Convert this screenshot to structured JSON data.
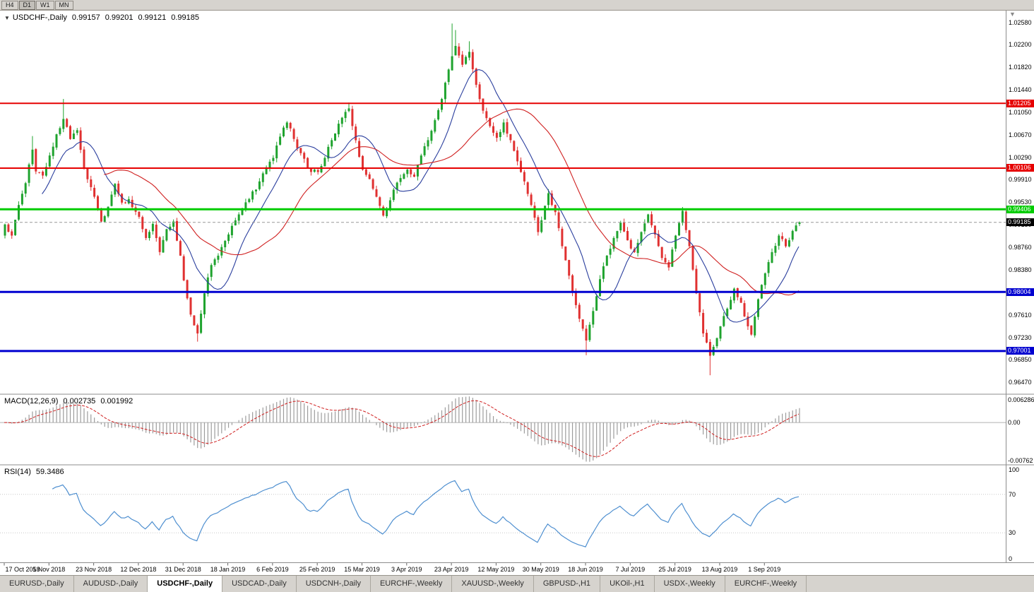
{
  "toolbar": {
    "timeframes": [
      "H4",
      "D1",
      "W1",
      "MN"
    ],
    "active_timeframe": "D1",
    "chart_shift_icon": "▼"
  },
  "chart_header": {
    "expander": "▼",
    "symbol": "USDCHF-,Daily",
    "open": "0.99157",
    "high": "0.99201",
    "low": "0.99121",
    "close": "0.99185"
  },
  "macd_header": {
    "label": "MACD(12,26,9)",
    "main": "0.002735",
    "signal": "0.001992"
  },
  "rsi_header": {
    "label": "RSI(14)",
    "value": "59.3486"
  },
  "current_price": {
    "label": "0.99185",
    "value": 0.99185,
    "color": "#000000"
  },
  "colors": {
    "bull": "#1fa32e",
    "bear": "#e03131",
    "ma_fast": "#2b3f9e",
    "ma_slow": "#d02020",
    "macd_hist": "#9c9c9c",
    "macd_signal": "#d02020",
    "rsi_line": "#4e8fd0",
    "grid": "#b0b0b0",
    "level_red": "#e60000",
    "level_green": "#00cc00",
    "level_blue": "#0000d0"
  },
  "tabs": {
    "active_index": 2,
    "items": [
      "EURUSD-,Daily",
      "AUDUSD-,Daily",
      "USDCHF-,Daily",
      "USDCAD-,Daily",
      "USDCNH-,Daily",
      "EURCHF-,Weekly",
      "XAUUSD-,Weekly",
      "GBPUSD-,H1",
      "UKOil-,H1",
      "USDX-,Weekly",
      "EURCHF-,Weekly"
    ]
  },
  "chart_data": {
    "type": "candlestick",
    "symbol": "USDCHF-",
    "timeframe": "Daily",
    "last_ohlc": {
      "open": 0.99157,
      "high": 0.99201,
      "low": 0.99121,
      "close": 0.99185
    },
    "y_axis": {
      "visible_range": [
        0.9628,
        1.0278
      ],
      "ticks": [
        [
          "1.02580",
          1.0258
        ],
        [
          "1.02200",
          1.022
        ],
        [
          "1.01820",
          1.0182
        ],
        [
          "1.01440",
          1.0144
        ],
        [
          "1.01050",
          1.0105
        ],
        [
          "1.00670",
          1.0067
        ],
        [
          "1.00290",
          1.0029
        ],
        [
          "0.99910",
          0.9991
        ],
        [
          "0.99530",
          0.9953
        ],
        [
          "0.99150",
          0.9915
        ],
        [
          "0.98760",
          0.9876
        ],
        [
          "0.98380",
          0.9838
        ],
        [
          "0.98000",
          0.98
        ],
        [
          "0.97610",
          0.9761
        ],
        [
          "0.97230",
          0.9723
        ],
        [
          "0.96850",
          0.9685
        ],
        [
          "0.96470",
          0.9647
        ]
      ]
    },
    "x_axis": {
      "date_labels": [
        "17 Oct 2018",
        "5 Nov 2018",
        "23 Nov 2018",
        "12 Dec 2018",
        "31 Dec 2018",
        "18 Jan 2019",
        "6 Feb 2019",
        "25 Feb 2019",
        "15 Mar 2019",
        "3 Apr 2019",
        "23 Apr 2019",
        "12 May 2019",
        "30 May 2019",
        "18 Jun 2019",
        "7 Jul 2019",
        "25 Jul 2019",
        "13 Aug 2019",
        "1 Sep 2019"
      ],
      "first_label_bar": 0,
      "bars_per_label": 13
    },
    "horizontal_levels": [
      {
        "label": "1.01205",
        "value": 1.01205,
        "color": "#e60000",
        "width": 2
      },
      {
        "label": "1.00106",
        "value": 1.00106,
        "color": "#e60000",
        "width": 2
      },
      {
        "label": "0.99406",
        "value": 0.99406,
        "color": "#00cc00",
        "width": 3
      },
      {
        "label": "0.98004",
        "value": 0.98004,
        "color": "#0000d0",
        "width": 3
      },
      {
        "label": "0.97001",
        "value": 0.97001,
        "color": "#0000d0",
        "width": 3
      }
    ],
    "overlays": [
      {
        "name": "ma-fast-line",
        "type": "sma",
        "period": 12,
        "color": "#2b3f9e"
      },
      {
        "name": "ma-slow-line",
        "type": "sma",
        "period": 30,
        "color": "#d02020"
      }
    ],
    "indicators": [
      {
        "type": "macd",
        "params": [
          12,
          26,
          9
        ],
        "value_main": 0.002735,
        "value_signal": 0.001992,
        "axis_labels": [
          "0.006286",
          "0.00",
          "-0.00762"
        ]
      },
      {
        "type": "rsi",
        "params": [
          14
        ],
        "value": 59.3486,
        "axis_labels": [
          "100",
          "70",
          "30",
          "0"
        ],
        "guide_levels": [
          70,
          30
        ]
      }
    ],
    "candles": {
      "count": 232,
      "first_open": 0.9896,
      "noise": 0.0008,
      "wick": 0.0014,
      "last_bar": [
        0.99157,
        0.99201,
        0.99121,
        0.99185
      ],
      "close_checkpoints": [
        [
          0,
          0.9915
        ],
        [
          2,
          0.9896
        ],
        [
          4,
          0.9948
        ],
        [
          6,
          0.9985
        ],
        [
          8,
          1.0042
        ],
        [
          9,
          1.0005
        ],
        [
          11,
          0.9998
        ],
        [
          13,
          1.0032
        ],
        [
          15,
          1.0068
        ],
        [
          17,
          1.0094
        ],
        [
          19,
          1.006
        ],
        [
          21,
          1.0075
        ],
        [
          23,
          1.001
        ],
        [
          26,
          0.9962
        ],
        [
          28,
          0.992
        ],
        [
          30,
          0.9945
        ],
        [
          32,
          0.9984
        ],
        [
          34,
          0.9952
        ],
        [
          36,
          0.9958
        ],
        [
          39,
          0.9928
        ],
        [
          41,
          0.9892
        ],
        [
          43,
          0.9916
        ],
        [
          45,
          0.9868
        ],
        [
          47,
          0.9907
        ],
        [
          49,
          0.992
        ],
        [
          51,
          0.9862
        ],
        [
          52,
          0.982
        ],
        [
          54,
          0.9762
        ],
        [
          56,
          0.973
        ],
        [
          58,
          0.9798
        ],
        [
          60,
          0.9846
        ],
        [
          62,
          0.9862
        ],
        [
          65,
          0.9898
        ],
        [
          68,
          0.9932
        ],
        [
          71,
          0.9958
        ],
        [
          74,
          0.9988
        ],
        [
          76,
          1.0012
        ],
        [
          78,
          1.0028
        ],
        [
          80,
          1.0064
        ],
        [
          82,
          1.0088
        ],
        [
          84,
          1.006
        ],
        [
          86,
          1.0036
        ],
        [
          88,
          1.001
        ],
        [
          91,
          1.0004
        ],
        [
          93,
          1.0028
        ],
        [
          95,
          1.0058
        ],
        [
          97,
          1.0086
        ],
        [
          99,
          1.0106
        ],
        [
          100,
          1.0112
        ],
        [
          102,
          1.0058
        ],
        [
          104,
          1.0008
        ],
        [
          106,
          0.9992
        ],
        [
          108,
          0.9962
        ],
        [
          110,
          0.993
        ],
        [
          112,
          0.9956
        ],
        [
          114,
          0.9986
        ],
        [
          117,
          1.0008
        ],
        [
          119,
          0.9996
        ],
        [
          121,
          1.0032
        ],
        [
          123,
          1.0058
        ],
        [
          125,
          1.0092
        ],
        [
          127,
          1.0128
        ],
        [
          129,
          1.0178
        ],
        [
          131,
          1.0218
        ],
        [
          133,
          1.0186
        ],
        [
          135,
          1.0208
        ],
        [
          137,
          1.0152
        ],
        [
          139,
          1.0108
        ],
        [
          141,
          1.0082
        ],
        [
          143,
          1.0062
        ],
        [
          145,
          1.0088
        ],
        [
          147,
          1.0058
        ],
        [
          149,
          1.0022
        ],
        [
          151,
          0.9988
        ],
        [
          153,
          0.9948
        ],
        [
          155,
          0.9902
        ],
        [
          156,
          0.9922
        ],
        [
          158,
          0.9968
        ],
        [
          160,
          0.9936
        ],
        [
          162,
          0.9878
        ],
        [
          164,
          0.9828
        ],
        [
          166,
          0.9778
        ],
        [
          168,
          0.9738
        ],
        [
          169,
          0.9718
        ],
        [
          171,
          0.9768
        ],
        [
          173,
          0.9822
        ],
        [
          175,
          0.9862
        ],
        [
          177,
          0.9892
        ],
        [
          179,
          0.9918
        ],
        [
          181,
          0.9888
        ],
        [
          183,
          0.9868
        ],
        [
          185,
          0.9902
        ],
        [
          187,
          0.9932
        ],
        [
          189,
          0.9898
        ],
        [
          191,
          0.9858
        ],
        [
          193,
          0.9842
        ],
        [
          195,
          0.9896
        ],
        [
          197,
          0.9938
        ],
        [
          199,
          0.9878
        ],
        [
          201,
          0.9798
        ],
        [
          203,
          0.973
        ],
        [
          205,
          0.9692
        ],
        [
          207,
          0.9722
        ],
        [
          208,
          0.9742
        ],
        [
          210,
          0.9772
        ],
        [
          212,
          0.9806
        ],
        [
          214,
          0.9782
        ],
        [
          216,
          0.9742
        ],
        [
          217,
          0.9728
        ],
        [
          219,
          0.9788
        ],
        [
          221,
          0.9832
        ],
        [
          223,
          0.9868
        ],
        [
          225,
          0.9896
        ],
        [
          227,
          0.9878
        ],
        [
          229,
          0.9904
        ],
        [
          231,
          0.99185
        ]
      ],
      "spikes": [
        {
          "i": 8,
          "h": 1.0065
        },
        {
          "i": 17,
          "h": 1.0128
        },
        {
          "i": 56,
          "l": 0.9716
        },
        {
          "i": 100,
          "h": 1.0122
        },
        {
          "i": 130,
          "h": 1.0256
        },
        {
          "i": 131,
          "h": 1.0245
        },
        {
          "i": 135,
          "h": 1.0226
        },
        {
          "i": 169,
          "l": 0.9693
        },
        {
          "i": 205,
          "l": 0.9659
        },
        {
          "i": 217,
          "l": 0.9726
        }
      ]
    }
  }
}
